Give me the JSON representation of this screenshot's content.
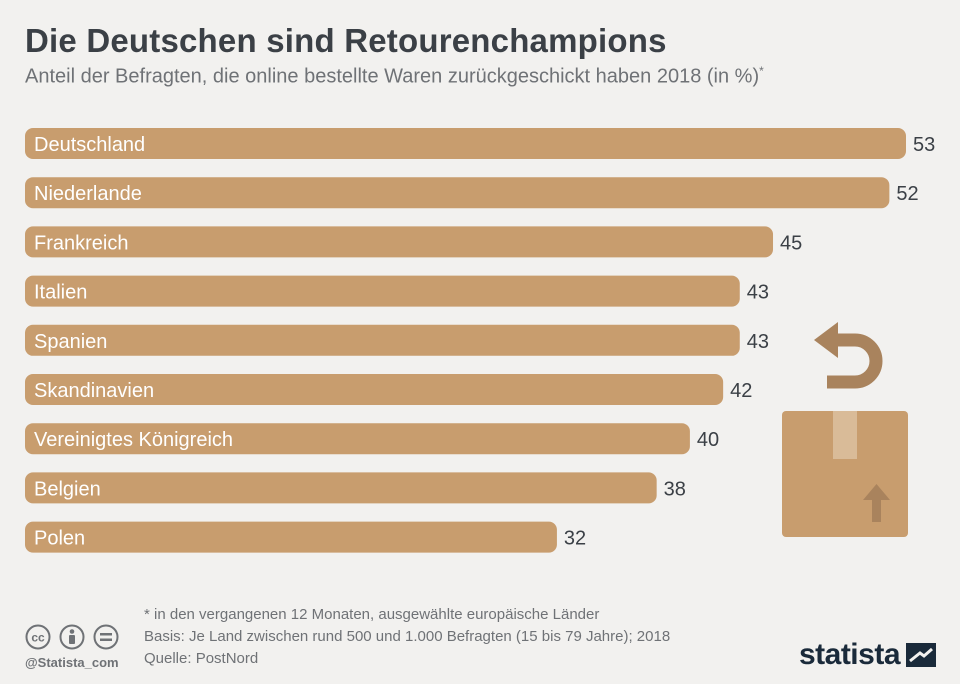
{
  "header": {
    "title": "Die Deutschen sind Retourenchampions",
    "subtitle": "Anteil der Befragten, die online bestellte Waren zurückgeschickt haben 2018 (in %)",
    "subtitle_mark": "*"
  },
  "chart_data": {
    "type": "bar",
    "orientation": "horizontal",
    "title": "Die Deutschen sind Retourenchampions",
    "subtitle": "Anteil der Befragten, die online bestellte Waren zurückgeschickt haben 2018 (in %)",
    "categories": [
      "Deutschland",
      "Niederlande",
      "Frankreich",
      "Italien",
      "Spanien",
      "Skandinavien",
      "Vereinigtes Königreich",
      "Belgien",
      "Polen"
    ],
    "values": [
      53,
      52,
      45,
      43,
      43,
      42,
      40,
      38,
      32
    ],
    "xlim": [
      0,
      53
    ],
    "grid": false,
    "bar_color": "#c89d6e"
  },
  "footer": {
    "note": "* in den vergangenen 12 Monaten, ausgewählte europäische Länder",
    "basis": "Basis: Je Land zwischen rund 500 und 1.000 Befragten (15 bis 79 Jahre); 2018",
    "source": "Quelle: PostNord",
    "handle": "@Statista_com",
    "brand": "statista"
  },
  "colors": {
    "background": "#f2f1ef",
    "bar": "#c89d6e",
    "text_dark": "#3b4046",
    "text_muted": "#6f7276",
    "brand": "#1a2a3a"
  },
  "icons": {
    "cc": "creative-commons-icon",
    "by": "attribution-icon",
    "nd": "no-derivatives-icon",
    "return": "return-arrow-icon",
    "box": "package-box-icon"
  }
}
